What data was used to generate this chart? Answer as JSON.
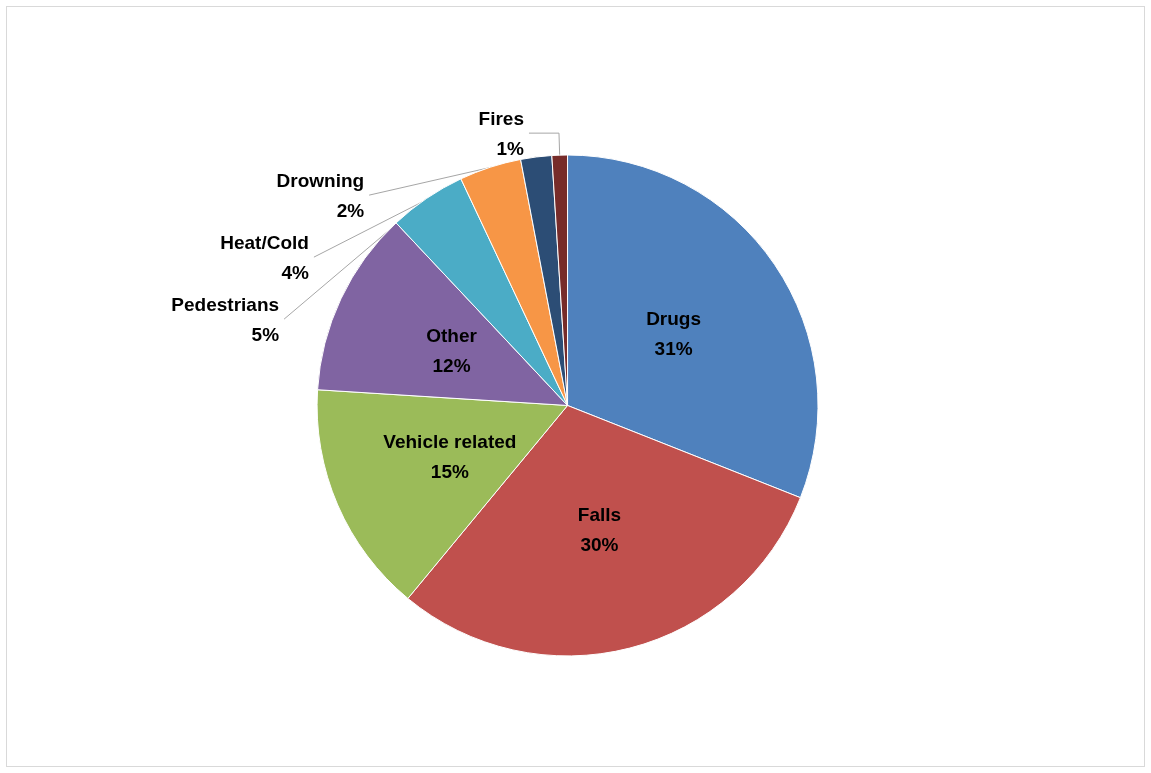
{
  "chart_data": {
    "type": "pie",
    "categories": [
      "Drugs",
      "Falls",
      "Vehicle related",
      "Other",
      "Pedestrians",
      "Heat/Cold",
      "Drowning",
      "Fires"
    ],
    "values": [
      31,
      30,
      15,
      12,
      5,
      4,
      2,
      1
    ],
    "value_labels": [
      "31%",
      "30%",
      "15%",
      "12%",
      "5%",
      "4%",
      "2%",
      "1%"
    ],
    "colors": [
      "#4f81bd",
      "#c0504d",
      "#9bbb59",
      "#8064a2",
      "#4bacc6",
      "#f79646",
      "#2c4d75",
      "#772c2a"
    ],
    "legend": false
  }
}
